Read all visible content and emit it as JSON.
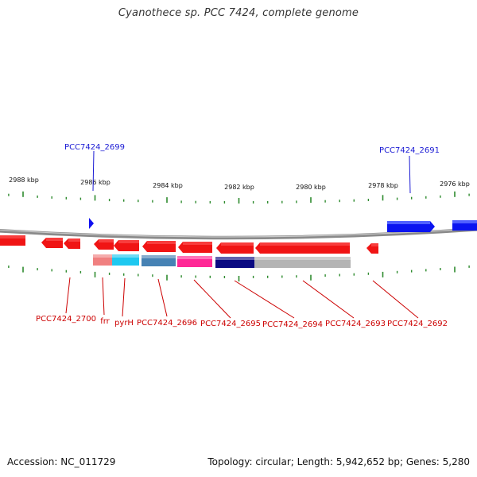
{
  "title": "Cyanothece sp. PCC 7424, complete genome",
  "ruler": {
    "ticks": [
      {
        "label": "2988 kbp",
        "kbp": 2988
      },
      {
        "label": "2986 kbp",
        "kbp": 2986
      },
      {
        "label": "2984 kbp",
        "kbp": 2984
      },
      {
        "label": "2982 kbp",
        "kbp": 2982
      },
      {
        "label": "2980 kbp",
        "kbp": 2980
      },
      {
        "label": "2978 kbp",
        "kbp": 2978
      },
      {
        "label": "2976 kbp",
        "kbp": 2976
      }
    ]
  },
  "genes": {
    "forward": [
      {
        "label": "PCC7424_2699",
        "color": "#1a1ad4"
      },
      {
        "label": "PCC7424_2691",
        "color": "#1a1ad4"
      }
    ],
    "reverse": [
      {
        "label": "PCC7424_2700",
        "color": "#cc0000"
      },
      {
        "label": "frr",
        "color": "#cc0000"
      },
      {
        "label": "pyrH",
        "color": "#cc0000"
      },
      {
        "label": "PCC7424_2696",
        "color": "#cc0000"
      },
      {
        "label": "PCC7424_2695",
        "color": "#cc0000"
      },
      {
        "label": "PCC7424_2694",
        "color": "#cc0000"
      },
      {
        "label": "PCC7424_2693",
        "color": "#cc0000"
      },
      {
        "label": "PCC7424_2692",
        "color": "#cc0000"
      }
    ]
  },
  "colors": {
    "backbone": "#7a7a7a",
    "forward_gene": "#0a14f0",
    "reverse_gene": "#f01414",
    "tick": "#2e8b2e",
    "ruler_text": "#111111",
    "cog_palette": [
      "#f08080",
      "#1ec8f0",
      "#4682b4",
      "#ff2896",
      "#0a0a82",
      "#b4b4b4"
    ]
  },
  "footer": {
    "accession": "Accession: NC_011729",
    "summary": "Topology: circular; Length: 5,942,652 bp; Genes: 5,280"
  }
}
